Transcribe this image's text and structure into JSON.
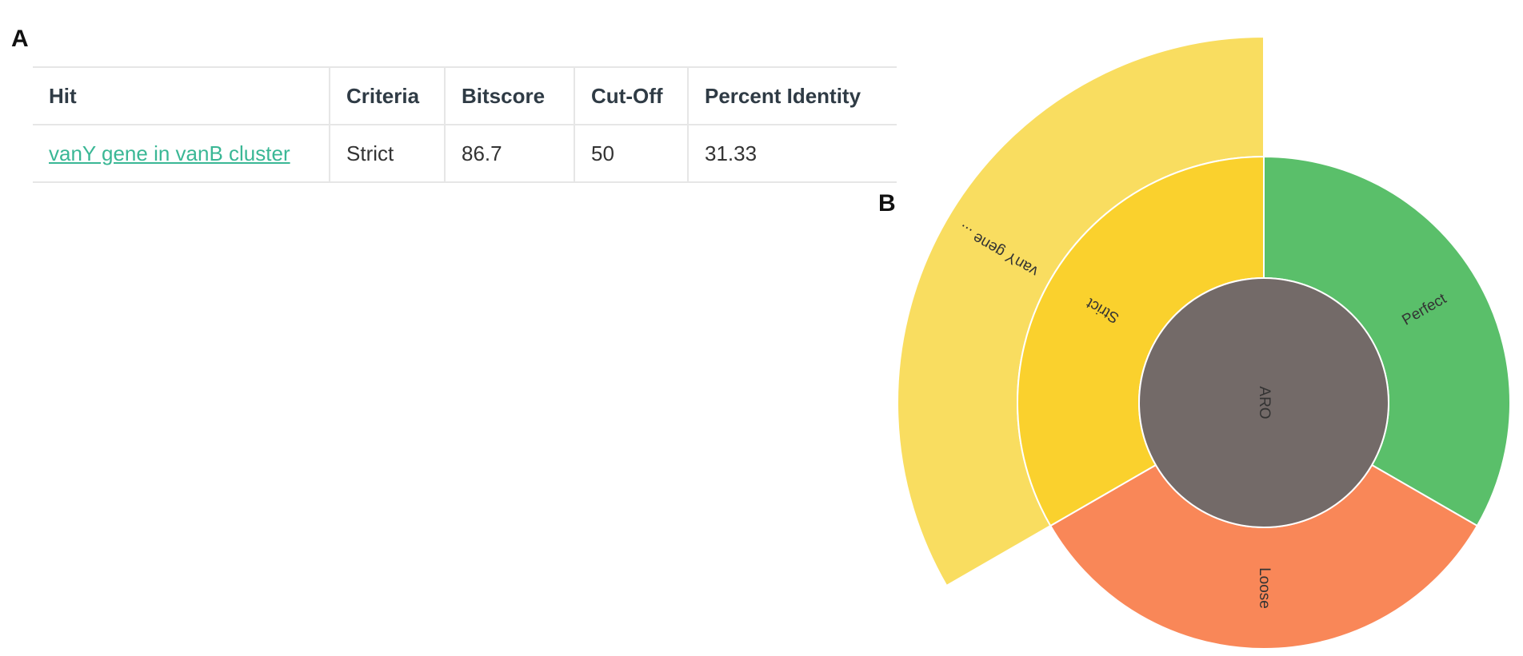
{
  "panels": {
    "a": "A",
    "b": "B"
  },
  "table": {
    "headers": [
      "Hit",
      "Criteria",
      "Bitscore",
      "Cut-Off",
      "Percent Identity"
    ],
    "rows": [
      {
        "hit": "vanY gene in vanB cluster",
        "criteria": "Strict",
        "bitscore": "86.7",
        "cutoff": "50",
        "percent_identity": "31.33"
      }
    ]
  },
  "sunburst": {
    "center": {
      "label": "ARO",
      "color": "#736a68"
    },
    "ring1": [
      {
        "label": "Perfect",
        "color": "#5abf6a",
        "start_deg": 0,
        "end_deg": 120
      },
      {
        "label": "Loose",
        "color": "#f98758",
        "start_deg": 120,
        "end_deg": 240
      },
      {
        "label": "Strict",
        "color": "#fad12d",
        "start_deg": 240,
        "end_deg": 360
      }
    ],
    "ring2": [
      {
        "label": "vanY gene ...",
        "color": "#f9dd60",
        "start_deg": 240,
        "end_deg": 360
      }
    ]
  }
}
